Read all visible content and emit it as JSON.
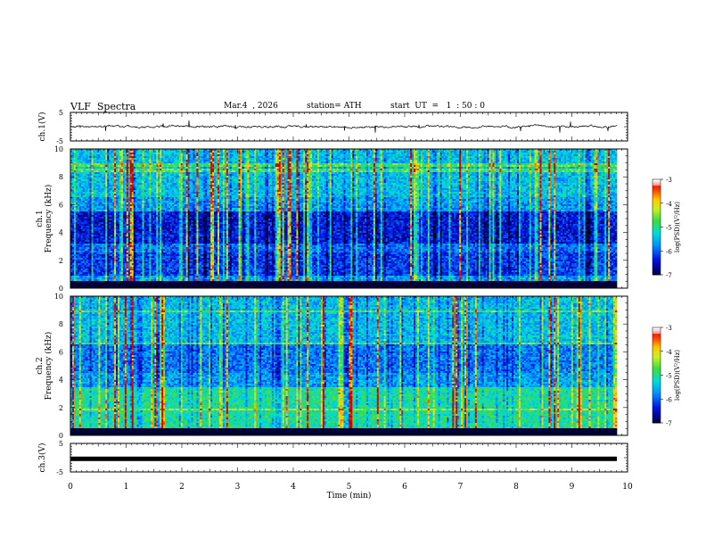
{
  "header": {
    "title": "VLF  Spectra",
    "date": "Mar.4  , 2026",
    "station": "station= ATH",
    "start_ut": "start  UT  =   1  : 50 : 0"
  },
  "chart_data": [
    {
      "type": "line",
      "name": "ch1-waveform",
      "ylabel": "ch.1(V)",
      "ylim": [
        -5,
        5
      ],
      "yticks": [
        "5",
        "-5"
      ],
      "xlim": [
        0,
        10
      ],
      "description_level": 0
    },
    {
      "type": "heatmap",
      "name": "ch1-spectrogram",
      "ylabel": "ch.1\nFrequency (kHz)",
      "ylabel_line1": "ch.1",
      "ylabel_line2": "Frequency  (kHz)",
      "ylim": [
        0,
        10
      ],
      "yticks": [
        "0",
        "2",
        "4",
        "6",
        "8",
        "10"
      ],
      "xlim": [
        0,
        9.85
      ],
      "colorbar": {
        "label": "log(PSD)(V²/Hz)",
        "range": [
          -7,
          -3
        ],
        "ticks": [
          "-3",
          "-4",
          "-5",
          "-6",
          "-7"
        ]
      }
    },
    {
      "type": "heatmap",
      "name": "ch2-spectrogram",
      "ylabel_line1": "ch.2",
      "ylabel_line2": "Frequency  (kHz)",
      "ylim": [
        0,
        10
      ],
      "yticks": [
        "0",
        "2",
        "4",
        "6",
        "8",
        "10"
      ],
      "xlim": [
        0,
        9.85
      ],
      "colorbar": {
        "label": "log(PSD)(V²/Hz)",
        "range": [
          -7,
          -3
        ],
        "ticks": [
          "-3",
          "-4",
          "-5",
          "-6",
          "-7"
        ]
      }
    },
    {
      "type": "line",
      "name": "ch3-waveform",
      "ylabel": "ch.3(V)",
      "ylim": [
        -5,
        5
      ],
      "yticks": [
        "5",
        "-5"
      ],
      "xlim": [
        0,
        10
      ],
      "level": -0.4
    }
  ],
  "xaxis": {
    "label": "Time  (min)",
    "ticks": [
      "0",
      "1",
      "2",
      "3",
      "4",
      "5",
      "6",
      "7",
      "8",
      "9",
      "10"
    ],
    "range": [
      0,
      10
    ]
  },
  "colors": {
    "axis": "#000000",
    "background": "#ffffff"
  }
}
